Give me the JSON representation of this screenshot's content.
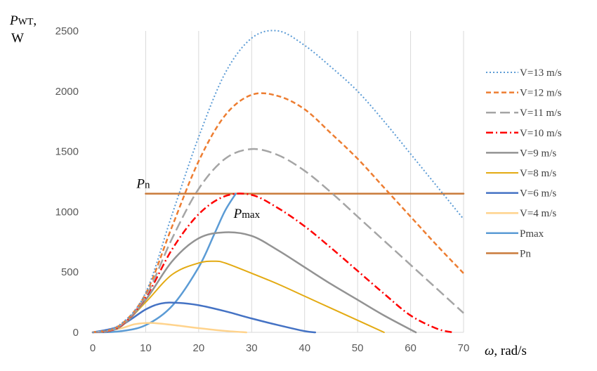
{
  "chart_data": {
    "type": "line",
    "title": "",
    "ylabel": {
      "main": "P",
      "sub": "WT",
      "suffix": ",",
      "unit": "W"
    },
    "xlabel": {
      "symbol": "ω",
      "rest": ", rad/s"
    },
    "xlim": [
      0,
      70
    ],
    "ylim": [
      0,
      2500
    ],
    "xticks": [
      0,
      10,
      20,
      30,
      40,
      50,
      60,
      70
    ],
    "yticks": [
      0,
      500,
      1000,
      1500,
      2000,
      2500
    ],
    "grid": {
      "x": true,
      "y": false
    },
    "legend": "right",
    "annotations": [
      {
        "id": "pn",
        "main": "P",
        "sub": "n",
        "x": 10,
        "y": 1150
      },
      {
        "id": "pmax",
        "main": "P",
        "sub": "max",
        "x": 27,
        "y": 1100
      }
    ],
    "series": [
      {
        "name": "V=13 m/s",
        "color": "#5B9BD5",
        "dash": "2 3",
        "width": 2,
        "x": [
          0,
          5,
          10,
          15,
          20,
          25,
          30,
          35,
          40,
          45,
          50,
          55,
          60,
          65,
          70
        ],
        "y": [
          0,
          60,
          330,
          980,
          1620,
          2150,
          2440,
          2500,
          2380,
          2200,
          2000,
          1750,
          1480,
          1210,
          940
        ]
      },
      {
        "name": "V=12 m/s",
        "color": "#ED7D31",
        "dash": "7 4",
        "width": 2.5,
        "x": [
          0,
          5,
          10,
          15,
          20,
          25,
          30,
          35,
          40,
          45,
          50,
          55,
          60,
          65,
          70
        ],
        "y": [
          0,
          55,
          320,
          880,
          1420,
          1800,
          1970,
          1960,
          1850,
          1650,
          1440,
          1200,
          960,
          720,
          490
        ]
      },
      {
        "name": "V=11 m/s",
        "color": "#A5A5A5",
        "dash": "14 6",
        "width": 2.5,
        "x": [
          0,
          5,
          10,
          15,
          20,
          25,
          30,
          35,
          40,
          45,
          50,
          55,
          60,
          65,
          70
        ],
        "y": [
          0,
          50,
          300,
          780,
          1190,
          1440,
          1520,
          1470,
          1340,
          1160,
          960,
          760,
          560,
          360,
          160
        ]
      },
      {
        "name": "V=10 m/s",
        "color": "#FF0000",
        "dash": "10 4 2 4",
        "width": 2.5,
        "x": [
          0,
          5,
          10,
          15,
          20,
          25,
          30,
          35,
          40,
          45,
          50,
          55,
          60,
          65,
          68
        ],
        "y": [
          0,
          45,
          290,
          690,
          980,
          1130,
          1140,
          1030,
          880,
          700,
          510,
          320,
          140,
          30,
          0
        ]
      },
      {
        "name": "V=9 m/s",
        "color": "#939393",
        "dash": "",
        "width": 2.5,
        "x": [
          0,
          5,
          10,
          15,
          20,
          25,
          30,
          35,
          40,
          45,
          50,
          55,
          61
        ],
        "y": [
          0,
          40,
          270,
          590,
          780,
          830,
          800,
          680,
          540,
          400,
          270,
          140,
          0
        ]
      },
      {
        "name": "V=8 m/s",
        "color": "#E3AA12",
        "dash": "",
        "width": 2,
        "x": [
          0,
          5,
          10,
          15,
          20,
          23,
          25,
          30,
          35,
          40,
          45,
          50,
          55
        ],
        "y": [
          0,
          40,
          250,
          480,
          575,
          590,
          575,
          490,
          400,
          300,
          200,
          100,
          0
        ]
      },
      {
        "name": "V=6 m/s",
        "color": "#4472C4",
        "dash": "",
        "width": 2.5,
        "x": [
          0,
          5,
          10,
          13,
          16,
          20,
          25,
          30,
          35,
          40,
          42
        ],
        "y": [
          0,
          50,
          190,
          240,
          245,
          225,
          175,
          115,
          60,
          10,
          0
        ]
      },
      {
        "name": "V=4 m/s",
        "color": "#FFD38C",
        "dash": "",
        "width": 2.5,
        "x": [
          0,
          5,
          8,
          11,
          15,
          20,
          25,
          29
        ],
        "y": [
          0,
          30,
          68,
          78,
          62,
          35,
          12,
          0
        ]
      },
      {
        "name": "Pmax",
        "color": "#5B9BD5",
        "dash": "",
        "width": 2.5,
        "x": [
          0,
          5,
          10,
          15,
          20,
          23,
          25,
          27
        ],
        "y": [
          0,
          8,
          60,
          220,
          540,
          820,
          1010,
          1150
        ]
      },
      {
        "name": "Pn",
        "color": "#C97A3A",
        "dash": "",
        "width": 2.5,
        "x": [
          10,
          70
        ],
        "y": [
          1150,
          1150
        ]
      }
    ]
  }
}
